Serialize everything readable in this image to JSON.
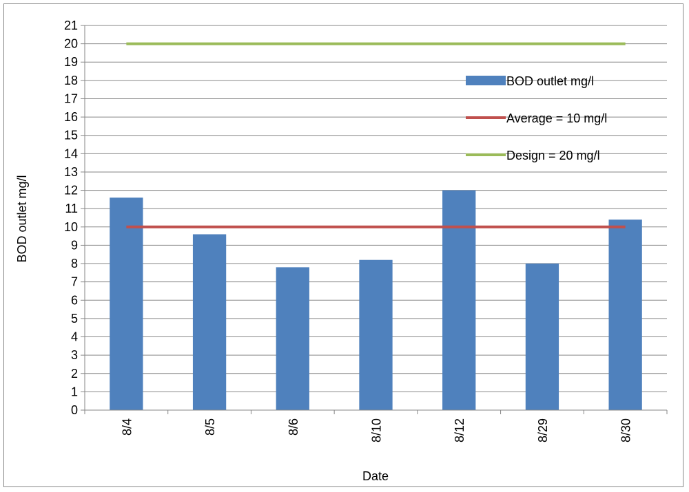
{
  "chart_data": {
    "type": "bar",
    "title": "",
    "xlabel": "Date",
    "ylabel": "BOD outlet mg/l",
    "categories": [
      "8/4",
      "8/5",
      "8/6",
      "8/10",
      "8/12",
      "8/29",
      "8/30"
    ],
    "ylim": [
      0,
      21
    ],
    "yticks": [
      0,
      1,
      2,
      3,
      4,
      5,
      6,
      7,
      8,
      9,
      10,
      11,
      12,
      13,
      14,
      15,
      16,
      17,
      18,
      19,
      20,
      21
    ],
    "grid": true,
    "legend_position": "right",
    "series": [
      {
        "name": "BOD outlet mg/l",
        "kind": "bar",
        "color": "#4f81bd",
        "values": [
          11.6,
          9.6,
          7.8,
          8.2,
          12.0,
          8.0,
          10.4
        ]
      },
      {
        "name": "Average = 10 mg/l",
        "kind": "line",
        "color": "#c0504d",
        "values": [
          10,
          10,
          10,
          10,
          10,
          10,
          10
        ]
      },
      {
        "name": "Design = 20 mg/l",
        "kind": "line",
        "color": "#9bbb59",
        "values": [
          20,
          20,
          20,
          20,
          20,
          20,
          20
        ]
      }
    ]
  }
}
